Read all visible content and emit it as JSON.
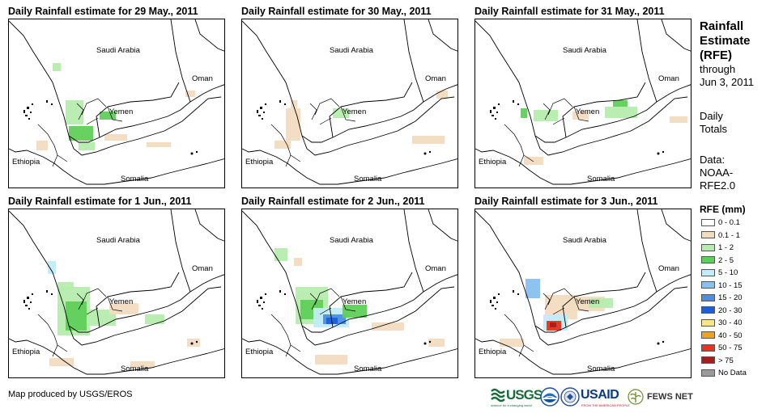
{
  "panels": [
    {
      "title": "Daily Rainfall estimate for 29 May., 2011"
    },
    {
      "title": "Daily Rainfall estimate for 30 May., 2011"
    },
    {
      "title": "Daily Rainfall estimate for 31 May., 2011"
    },
    {
      "title": "Daily Rainfall estimate for 1 Jun., 2011"
    },
    {
      "title": "Daily Rainfall estimate for 2 Jun., 2011"
    },
    {
      "title": "Daily Rainfall estimate for 3 Jun., 2011"
    }
  ],
  "map_labels": {
    "saudi": "Saudi Arabia",
    "oman": "Oman",
    "yemen": "Yemen",
    "ethiopia": "Ethiopia",
    "somalia": "Somalia"
  },
  "sidebar": {
    "title_line1": "Rainfall",
    "title_line2": "Estimate",
    "title_line3": "(RFE)",
    "through": "through",
    "date": "Jun 3, 2011",
    "daily1": "Daily",
    "daily2": "Totals",
    "data1": "Data:",
    "data2": "NOAA-",
    "data3": "RFE2.0",
    "legend_title": "RFE (mm)"
  },
  "legend": [
    {
      "label": "0 - 0.1",
      "color": "#ffffff"
    },
    {
      "label": "0.1 - 1",
      "color": "#f2dcc0"
    },
    {
      "label": "1 - 2",
      "color": "#b6ecae"
    },
    {
      "label": "2 - 5",
      "color": "#5fcf5a"
    },
    {
      "label": "5 - 10",
      "color": "#c2ecf7"
    },
    {
      "label": "10 - 15",
      "color": "#88c0ee"
    },
    {
      "label": "15 - 20",
      "color": "#4a8ee6"
    },
    {
      "label": "20 - 30",
      "color": "#1e5fd6"
    },
    {
      "label": "30 - 40",
      "color": "#f7e58a"
    },
    {
      "label": "40 - 50",
      "color": "#f0a21e"
    },
    {
      "label": "50 - 75",
      "color": "#e8321a"
    },
    {
      "label": "> 75",
      "color": "#a3201a"
    },
    {
      "label": "No Data",
      "color": "#9a9a9a"
    }
  ],
  "footer": {
    "credit": "Map produced by USGS/EROS"
  },
  "logos": {
    "usgs": "USGS",
    "usgs_tag": "science for a changing world",
    "usaid": "USAID",
    "usaid_tag": "FROM THE AMERICAN PEOPLE",
    "fews": "FEWS NET"
  }
}
